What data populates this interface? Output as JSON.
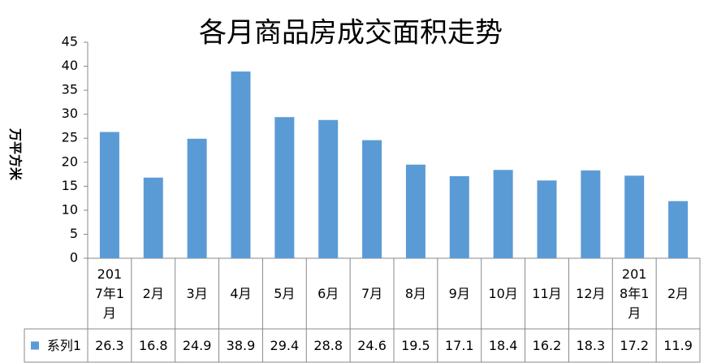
{
  "chart_data": {
    "type": "bar",
    "title": "各月商品房成交面积走势",
    "y_label": "万平方米",
    "categories": [
      "2017年1月",
      "2月",
      "3月",
      "4月",
      "5月",
      "6月",
      "7月",
      "8月",
      "9月",
      "10月",
      "11月",
      "12月",
      "2018年1月",
      "2月"
    ],
    "series": [
      {
        "name": "系列1",
        "color": "#5b9bd5",
        "values": [
          26.3,
          16.8,
          24.9,
          38.9,
          29.4,
          28.8,
          24.6,
          19.5,
          17.1,
          18.4,
          16.2,
          18.3,
          17.2,
          11.9
        ]
      }
    ],
    "ylim": [
      0,
      45
    ],
    "yticks": [
      0,
      5,
      10,
      15,
      20,
      25,
      30,
      35,
      40,
      45
    ],
    "data_table": true
  }
}
